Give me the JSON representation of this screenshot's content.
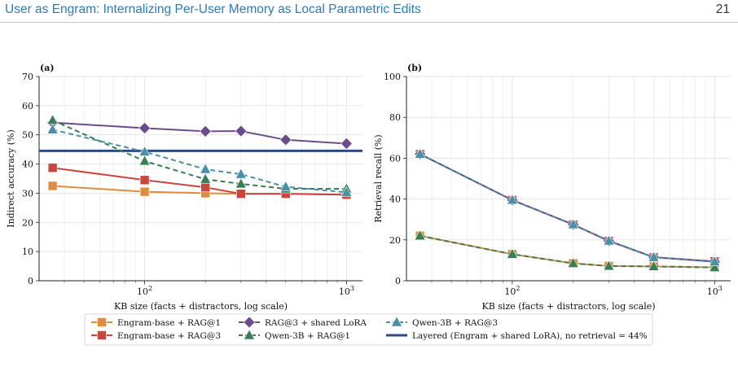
{
  "header": {
    "running_title": "User as Engram: Internalizing Per-User Memory as Local Parametric Edits",
    "page_number": "21"
  },
  "chart_data": [
    {
      "type": "line",
      "panel_label": "(a)",
      "xlabel": "KB size (facts + distractors, log scale)",
      "ylabel": "Indirect accuracy (%)",
      "x_scale": "log",
      "x_ticks": [
        {
          "value": 100,
          "label": "10²"
        },
        {
          "value": 1000,
          "label": "10³"
        }
      ],
      "ylim": [
        0,
        70
      ],
      "y_ticks": [
        0,
        10,
        20,
        30,
        40,
        50,
        60,
        70
      ],
      "grid": "on",
      "series": [
        {
          "name": "Engram-base + RAG@1",
          "color": "#e08c3e",
          "marker": "square",
          "dash": "solid",
          "x": [
            35,
            100,
            200,
            300,
            500,
            1000
          ],
          "values": [
            32.5,
            30.5,
            30,
            29.8,
            29.8,
            29.5
          ]
        },
        {
          "name": "Engram-base + RAG@3",
          "color": "#c8463d",
          "marker": "square",
          "dash": "solid",
          "x": [
            35,
            100,
            200,
            300,
            500,
            1000
          ],
          "values": [
            38.7,
            34.5,
            32,
            29.8,
            29.8,
            29.5
          ]
        },
        {
          "name": "RAG@3 + shared LoRA",
          "color": "#6a4c8c",
          "marker": "diamond",
          "dash": "solid",
          "x": [
            35,
            100,
            200,
            300,
            500,
            1000
          ],
          "values": [
            54.2,
            52.3,
            51.2,
            51.3,
            48.3,
            47
          ]
        },
        {
          "name": "Qwen-3B + RAG@1",
          "color": "#3a7d55",
          "marker": "triangle",
          "dash": "dashed",
          "x": [
            35,
            100,
            200,
            300,
            500,
            1000
          ],
          "values": [
            55,
            41,
            34.8,
            33.2,
            31.5,
            31.5
          ]
        },
        {
          "name": "Qwen-3B + RAG@3",
          "color": "#4a8fa3",
          "marker": "triangle",
          "dash": "dashed",
          "x": [
            35,
            100,
            200,
            300,
            500,
            1000
          ],
          "values": [
            51.8,
            44.2,
            38.2,
            36.5,
            32.2,
            30.3
          ]
        }
      ],
      "hline": {
        "name": "Layered (Engram + shared LoRA), no retrieval = 44%",
        "value": 44.5,
        "color": "#2f4a80"
      }
    },
    {
      "type": "line",
      "panel_label": "(b)",
      "xlabel": "KB size (facts + distractors, log scale)",
      "ylabel": "Retrieval recall (%)",
      "x_scale": "log",
      "x_ticks": [
        {
          "value": 100,
          "label": "10²"
        },
        {
          "value": 1000,
          "label": "10³"
        }
      ],
      "ylim": [
        0,
        100
      ],
      "y_ticks": [
        0,
        20,
        40,
        60,
        80,
        100
      ],
      "grid": "on",
      "series": [
        {
          "name": "Engram-base + RAG@1",
          "color": "#e08c3e",
          "marker": "square",
          "dash": "solid",
          "x": [
            35,
            100,
            200,
            300,
            500,
            1000
          ],
          "values": [
            22,
            13,
            8.5,
            7.2,
            7,
            6.5
          ]
        },
        {
          "name": "Engram-base + RAG@3",
          "color": "#c8463d",
          "marker": "square",
          "dash": "solid",
          "x": [
            35,
            100,
            200,
            300,
            500,
            1000
          ],
          "values": [
            62,
            39.5,
            27.5,
            19.5,
            11.5,
            9.5
          ]
        },
        {
          "name": "RAG@3 + shared LoRA",
          "color": "#6a4c8c",
          "marker": "diamond",
          "dash": "solid",
          "x": [
            35,
            100,
            200,
            300,
            500,
            1000
          ],
          "values": [
            62,
            39.5,
            27.5,
            19.5,
            11.5,
            9.3
          ]
        },
        {
          "name": "Qwen-3B + RAG@1",
          "color": "#3a7d55",
          "marker": "triangle",
          "dash": "dashed",
          "x": [
            35,
            100,
            200,
            300,
            500,
            1000
          ],
          "values": [
            22,
            13,
            8.5,
            7.2,
            7,
            6.5
          ]
        },
        {
          "name": "Qwen-3B + RAG@3",
          "color": "#4a8fa3",
          "marker": "triangle",
          "dash": "dashed",
          "x": [
            35,
            100,
            200,
            300,
            500,
            1000
          ],
          "values": [
            62,
            39.5,
            27.5,
            19.5,
            11.5,
            9.3
          ]
        }
      ]
    }
  ],
  "legend": {
    "placement": "bottom-center",
    "entries": [
      {
        "label": "Engram-base + RAG@1",
        "color": "#e08c3e",
        "marker": "square",
        "dash": "solid"
      },
      {
        "label": "RAG@3 + shared LoRA",
        "color": "#6a4c8c",
        "marker": "diamond",
        "dash": "solid"
      },
      {
        "label": "Qwen-3B + RAG@3",
        "color": "#4a8fa3",
        "marker": "triangle",
        "dash": "dashed"
      },
      {
        "label": "Engram-base + RAG@3",
        "color": "#c8463d",
        "marker": "square",
        "dash": "solid"
      },
      {
        "label": "Qwen-3B + RAG@1",
        "color": "#3a7d55",
        "marker": "triangle",
        "dash": "dashed"
      },
      {
        "label": "Layered (Engram + shared LoRA), no retrieval = 44%",
        "color": "#2f4a80",
        "marker": "none",
        "dash": "solid"
      }
    ]
  }
}
